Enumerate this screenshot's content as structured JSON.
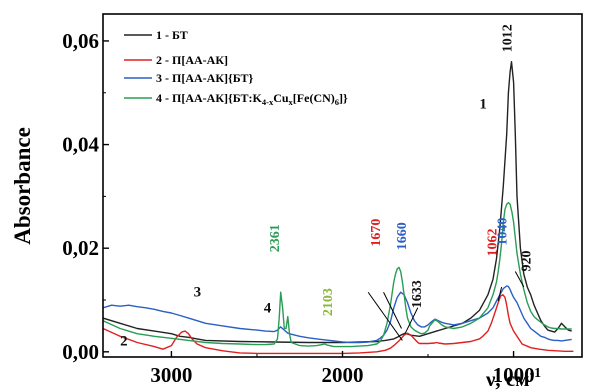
{
  "chart_data": {
    "type": "line",
    "title": "",
    "xlabel": "ν, см",
    "xlabel_superscript": "-1",
    "ylabel": "Absorbance",
    "x_reversed": true,
    "xlim": [
      3400,
      600
    ],
    "ylim": [
      -0.001,
      0.0652
    ],
    "xticks": [
      3000,
      2000,
      1000
    ],
    "xtick_labels": [
      "3000",
      "2000",
      "1000"
    ],
    "yticks": [
      0,
      0.02,
      0.04,
      0.06
    ],
    "ytick_labels": [
      "0,00",
      "0,02",
      "0,04",
      "0,06"
    ],
    "grid": false,
    "legend_position": "top-left",
    "legend": [
      {
        "text": "1 - БТ",
        "color": "#222222"
      },
      {
        "text": "2 - П[АА-АК]",
        "color": "#e02020"
      },
      {
        "text": "3 - П[АА-АК]{БТ}",
        "color": "#2a5fc4"
      },
      {
        "text": "4 - П[АА-АК]{БТ:K",
        "sub1": "4-x",
        "mid": "Cu",
        "sub2": "x",
        "tail": "[Fe(CN)",
        "sub3": "6",
        "end": "]}",
        "color": "#2a9d55"
      }
    ],
    "series": [
      {
        "name": "1 - БТ",
        "color": "#222222",
        "x": [
          3400,
          3300,
          3200,
          3100,
          3000,
          2950,
          2900,
          2850,
          2800,
          2600,
          2400,
          2200,
          2000,
          1900,
          1800,
          1750,
          1700,
          1680,
          1660,
          1633,
          1600,
          1550,
          1500,
          1450,
          1400,
          1300,
          1250,
          1200,
          1150,
          1120,
          1100,
          1080,
          1060,
          1040,
          1030,
          1020,
          1012,
          1000,
          990,
          980,
          960,
          940,
          920,
          900,
          880,
          860,
          840,
          820,
          800,
          780,
          760,
          740,
          720,
          700,
          680,
          660
        ],
        "y": [
          0.0065,
          0.0055,
          0.0045,
          0.004,
          0.0035,
          0.003,
          0.0028,
          0.0025,
          0.0022,
          0.002,
          0.0019,
          0.0018,
          0.0018,
          0.0019,
          0.002,
          0.0022,
          0.0025,
          0.0028,
          0.0032,
          0.0036,
          0.0032,
          0.003,
          0.0035,
          0.004,
          0.0045,
          0.0055,
          0.0065,
          0.008,
          0.011,
          0.014,
          0.018,
          0.024,
          0.032,
          0.042,
          0.05,
          0.054,
          0.056,
          0.052,
          0.042,
          0.03,
          0.02,
          0.015,
          0.0125,
          0.011,
          0.009,
          0.0075,
          0.006,
          0.005,
          0.0042,
          0.004,
          0.0038,
          0.0045,
          0.0055,
          0.0048,
          0.0042,
          0.004
        ]
      },
      {
        "name": "2 - П[АА-АК]",
        "color": "#e02020",
        "x": [
          3400,
          3300,
          3200,
          3100,
          3050,
          3000,
          2970,
          2940,
          2920,
          2900,
          2880,
          2850,
          2800,
          2700,
          2600,
          2500,
          2400,
          2300,
          2200,
          2100,
          2000,
          1900,
          1800,
          1750,
          1720,
          1700,
          1670,
          1640,
          1620,
          1600,
          1580,
          1560,
          1550,
          1500,
          1460,
          1450,
          1440,
          1420,
          1400,
          1350,
          1300,
          1250,
          1200,
          1180,
          1150,
          1130,
          1110,
          1090,
          1075,
          1062,
          1050,
          1040,
          1030,
          1020,
          1000,
          980,
          950,
          900,
          850,
          800,
          750,
          700,
          650
        ],
        "y": [
          0.0045,
          0.003,
          0.0018,
          0.001,
          0.0005,
          0.0012,
          0.0028,
          0.0038,
          0.004,
          0.0035,
          0.0025,
          0.0015,
          0.0008,
          0.0002,
          -0.0002,
          -0.0003,
          -0.0003,
          -0.0003,
          -0.0003,
          -0.0003,
          -0.0003,
          -0.0002,
          0,
          0.0003,
          0.0007,
          0.0012,
          0.0021,
          0.0032,
          0.0036,
          0.0032,
          0.0025,
          0.0018,
          0.0016,
          0.0016,
          0.0017,
          0.0018,
          0.0017,
          0.0016,
          0.0015,
          0.0016,
          0.0018,
          0.002,
          0.0025,
          0.003,
          0.004,
          0.0055,
          0.0075,
          0.0095,
          0.0108,
          0.011,
          0.0105,
          0.009,
          0.007,
          0.0055,
          0.004,
          0.003,
          0.0015,
          0.0008,
          0.0005,
          0.0003,
          0.0002,
          0.0001,
          0.0001
        ]
      },
      {
        "name": "3 - П[АА-АК]{БТ}",
        "color": "#2a5fc4",
        "x": [
          3400,
          3350,
          3300,
          3250,
          3200,
          3150,
          3100,
          3050,
          3000,
          2950,
          2900,
          2850,
          2800,
          2700,
          2600,
          2500,
          2450,
          2400,
          2380,
          2362,
          2340,
          2320,
          2300,
          2250,
          2200,
          2150,
          2100,
          2050,
          2000,
          1950,
          1900,
          1850,
          1800,
          1780,
          1760,
          1740,
          1720,
          1700,
          1680,
          1660,
          1640,
          1620,
          1600,
          1580,
          1560,
          1540,
          1520,
          1500,
          1480,
          1460,
          1440,
          1420,
          1400,
          1350,
          1300,
          1250,
          1200,
          1150,
          1120,
          1100,
          1080,
          1060,
          1040,
          1030,
          1020,
          1010,
          1000,
          980,
          960,
          940,
          920,
          900,
          880,
          860,
          840,
          820,
          800,
          780,
          760,
          740,
          720,
          700,
          680,
          660
        ],
        "y": [
          0.0085,
          0.009,
          0.0088,
          0.009,
          0.0087,
          0.0085,
          0.0082,
          0.0078,
          0.0075,
          0.007,
          0.0065,
          0.006,
          0.0055,
          0.005,
          0.0045,
          0.0042,
          0.004,
          0.0039,
          0.0042,
          0.0048,
          0.0042,
          0.0036,
          0.0034,
          0.003,
          0.0027,
          0.0025,
          0.0023,
          0.0021,
          0.0019,
          0.0018,
          0.0018,
          0.0019,
          0.0022,
          0.0026,
          0.0032,
          0.0042,
          0.0058,
          0.0085,
          0.0105,
          0.0115,
          0.011,
          0.0095,
          0.0075,
          0.006,
          0.0052,
          0.0048,
          0.0048,
          0.0052,
          0.0058,
          0.0063,
          0.006,
          0.0057,
          0.0055,
          0.0052,
          0.0055,
          0.006,
          0.0065,
          0.0075,
          0.0085,
          0.0098,
          0.011,
          0.0122,
          0.0127,
          0.0126,
          0.012,
          0.0112,
          0.0105,
          0.0095,
          0.008,
          0.0065,
          0.0055,
          0.0045,
          0.004,
          0.0035,
          0.003,
          0.0028,
          0.0025,
          0.0023,
          0.0022,
          0.0022,
          0.0021,
          0.0022,
          0.0023,
          0.0024
        ]
      },
      {
        "name": "4 - П[АА-АК]{БТ:K4-xCux[Fe(CN)6]}",
        "color": "#2a9d55",
        "x": [
          3400,
          3300,
          3200,
          3100,
          3000,
          2900,
          2800,
          2700,
          2600,
          2500,
          2450,
          2400,
          2380,
          2370,
          2361,
          2350,
          2340,
          2330,
          2320,
          2310,
          2300,
          2250,
          2200,
          2150,
          2120,
          2103,
          2090,
          2050,
          2000,
          1950,
          1900,
          1850,
          1800,
          1780,
          1760,
          1740,
          1720,
          1700,
          1690,
          1680,
          1670,
          1660,
          1650,
          1640,
          1630,
          1620,
          1600,
          1580,
          1560,
          1540,
          1520,
          1500,
          1490,
          1470,
          1460,
          1440,
          1420,
          1400,
          1350,
          1300,
          1250,
          1200,
          1150,
          1120,
          1100,
          1090,
          1080,
          1070,
          1060,
          1050,
          1040,
          1030,
          1020,
          1010,
          1000,
          990,
          980,
          960,
          940,
          920,
          900,
          880,
          860,
          840,
          820,
          800,
          780,
          760,
          740,
          720,
          700,
          680,
          660
        ],
        "y": [
          0.006,
          0.0045,
          0.0035,
          0.003,
          0.0026,
          0.0022,
          0.0018,
          0.0016,
          0.0015,
          0.0014,
          0.0014,
          0.0015,
          0.0025,
          0.0065,
          0.0115,
          0.0085,
          0.0045,
          0.0045,
          0.0068,
          0.0035,
          0.0018,
          0.0012,
          0.0011,
          0.0012,
          0.0014,
          0.0015,
          0.0013,
          0.001,
          0.001,
          0.001,
          0.0011,
          0.0012,
          0.0015,
          0.002,
          0.0032,
          0.0055,
          0.009,
          0.0135,
          0.015,
          0.016,
          0.0163,
          0.0155,
          0.0135,
          0.011,
          0.0085,
          0.0065,
          0.0048,
          0.0042,
          0.0038,
          0.0035,
          0.0036,
          0.0042,
          0.005,
          0.0058,
          0.0062,
          0.0058,
          0.0052,
          0.0048,
          0.0045,
          0.0048,
          0.0055,
          0.0065,
          0.0085,
          0.011,
          0.0135,
          0.0155,
          0.018,
          0.021,
          0.025,
          0.0275,
          0.0285,
          0.0288,
          0.0285,
          0.027,
          0.025,
          0.022,
          0.019,
          0.015,
          0.012,
          0.0095,
          0.0078,
          0.0068,
          0.0062,
          0.0057,
          0.0052,
          0.0048,
          0.0046,
          0.0045,
          0.0045,
          0.0044,
          0.0044,
          0.0044,
          0.0044
        ]
      }
    ],
    "annotations": [
      {
        "text": "1012",
        "x": 1012,
        "y": 0.0578,
        "color": "#111111",
        "rotate": true
      },
      {
        "text": "1",
        "x": 1200,
        "y": 0.047,
        "color": "#111111",
        "rotate": false
      },
      {
        "text": "920",
        "x": 900,
        "y": 0.0155,
        "color": "#111111",
        "rotate": true
      },
      {
        "text": "1040",
        "x": 1040,
        "y": 0.0205,
        "color": "#2a5fc4",
        "rotate": true
      },
      {
        "text": "1062",
        "x": 1100,
        "y": 0.0184,
        "color": "#e02020",
        "rotate": true
      },
      {
        "text": "1633",
        "x": 1540,
        "y": 0.0084,
        "color": "#111111",
        "rotate": true
      },
      {
        "text": "1660",
        "x": 1630,
        "y": 0.0196,
        "color": "#2a5fc4",
        "rotate": true
      },
      {
        "text": "1670",
        "x": 1780,
        "y": 0.0203,
        "color": "#e02020",
        "rotate": true
      },
      {
        "text": "2103",
        "x": 2060,
        "y": 0.0069,
        "color": "#8ab83c",
        "rotate": true
      },
      {
        "text": "2361",
        "x": 2370,
        "y": 0.0192,
        "color": "#2a9d55",
        "rotate": true
      },
      {
        "text": "4",
        "x": 2460,
        "y": 0.0076,
        "color": "#111111",
        "rotate": false
      },
      {
        "text": "3",
        "x": 2870,
        "y": 0.0107,
        "color": "#111111",
        "rotate": false
      },
      {
        "text": "2",
        "x": 3300,
        "y": 0.0012,
        "color": "#111111",
        "rotate": false
      }
    ],
    "leader_lines": [
      {
        "x1": 1850,
        "y1": 0.0115,
        "x2": 1650,
        "y2": 0.0022
      },
      {
        "x1": 1760,
        "y1": 0.0115,
        "x2": 1655,
        "y2": 0.0045
      },
      {
        "x1": 1560,
        "y1": 0.0085,
        "x2": 1633,
        "y2": 0.0036
      },
      {
        "x1": 1070,
        "y1": 0.0125,
        "x2": 1090,
        "y2": 0.0098
      },
      {
        "x1": 940,
        "y1": 0.0125,
        "x2": 990,
        "y2": 0.0155
      }
    ]
  }
}
